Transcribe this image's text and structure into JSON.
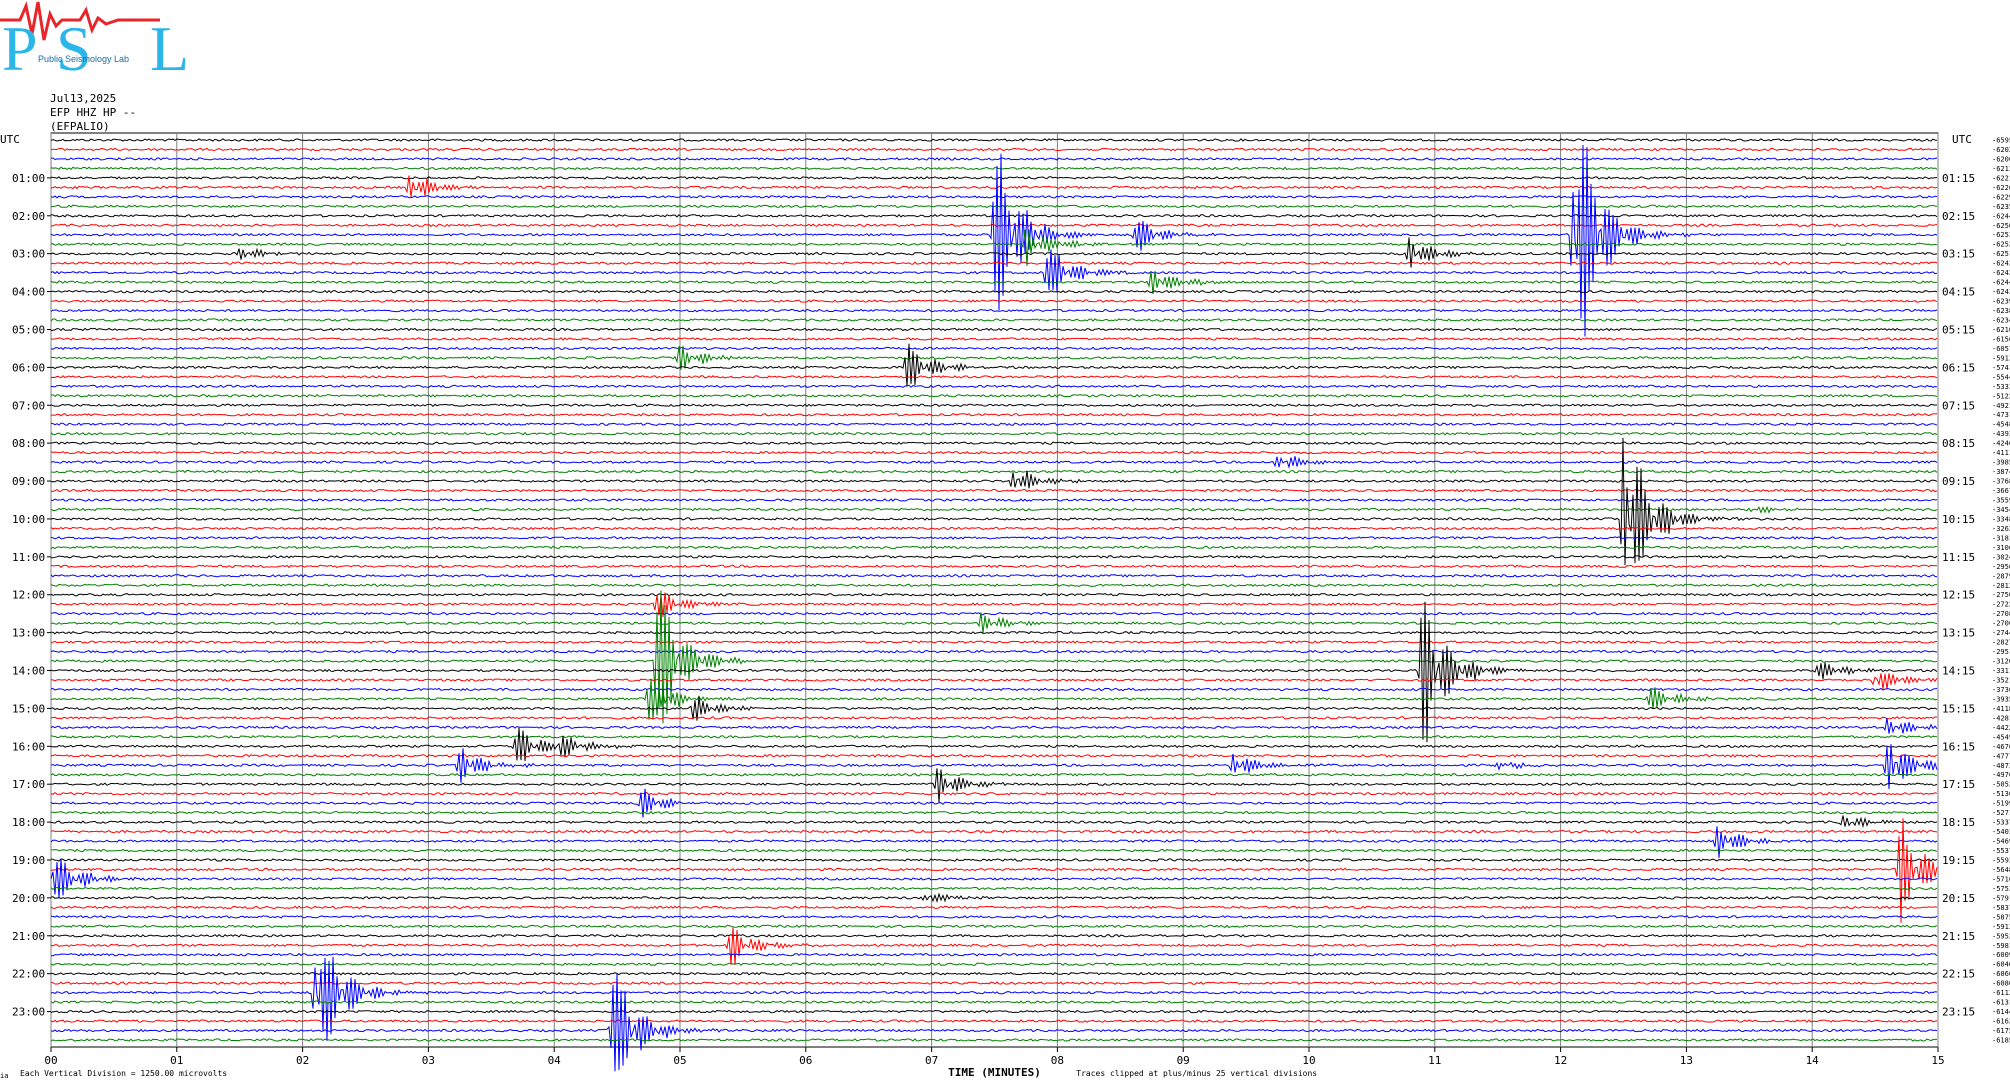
{
  "logo": {
    "letters": [
      "P",
      "S",
      "L"
    ],
    "text": "Public Seismology Lab"
  },
  "header": {
    "date": "Jul13,2025",
    "channel": "EFP HHZ HP --",
    "station": "(EFPALIO)"
  },
  "axis": {
    "left_title": "UTC",
    "right_title": "UTC",
    "x_title": "TIME (MINUTES)",
    "x_ticks": [
      "00",
      "01",
      "02",
      "03",
      "04",
      "05",
      "06",
      "07",
      "08",
      "09",
      "10",
      "11",
      "12",
      "13",
      "14",
      "15"
    ],
    "left_hours": [
      "01:00",
      "02:00",
      "03:00",
      "04:00",
      "05:00",
      "06:00",
      "07:00",
      "08:00",
      "09:00",
      "10:00",
      "11:00",
      "12:00",
      "13:00",
      "14:00",
      "15:00",
      "16:00",
      "17:00",
      "18:00",
      "19:00",
      "20:00",
      "21:00",
      "22:00",
      "23:00"
    ],
    "right_hours": [
      "01:15",
      "02:15",
      "03:15",
      "04:15",
      "05:15",
      "06:15",
      "07:15",
      "08:15",
      "09:15",
      "10:15",
      "11:15",
      "12:15",
      "13:15",
      "14:15",
      "15:15",
      "16:15",
      "17:15",
      "18:15",
      "19:15",
      "20:15",
      "21:15",
      "22:15",
      "23:15"
    ]
  },
  "footer": {
    "scale": "Each Vertical Division = 1250.00 microvolts",
    "clip": "Traces clipped at plus/minus 25 vertical divisions",
    "corner": "ia"
  },
  "colors": {
    "trace_cycle": [
      "#000000",
      "#ff0000",
      "#0000ff",
      "#008000"
    ],
    "grid": "#808080"
  },
  "chart_data": {
    "type": "line",
    "title": "",
    "xlabel": "TIME (MINUTES)",
    "ylabel": "UTC",
    "xlim": [
      0,
      15
    ],
    "rows_per_hour": 4,
    "row_minutes": 15,
    "rows": 96,
    "dc_offsets": [
      -6595,
      -6202,
      -6206,
      -6213,
      -6221,
      -6226,
      -6229,
      -6235,
      -6244,
      -6250,
      -6253,
      -6252,
      -6251,
      -6242,
      -6242,
      -6244,
      -6243,
      -6239,
      -6238,
      -6234,
      -6210,
      -6156,
      -6057,
      -5913,
      -5741,
      -5544,
      -5333,
      -5122,
      -4921,
      -4731,
      -4548,
      -4393,
      -4246,
      -4111,
      -3985,
      -3874,
      -3768,
      -3667,
      -3559,
      -3454,
      -3348,
      -3262,
      -3181,
      -3106,
      -3024,
      -2956,
      -2879,
      -2812,
      -2750,
      -2722,
      -2708,
      -2706,
      -2744,
      -2827,
      -2951,
      -3120,
      -3311,
      -3521,
      -3736,
      -3935,
      -4118,
      -4281,
      -4422,
      -4549,
      -4676,
      -4777,
      -4873,
      -4976,
      -5052,
      -5136,
      -5199,
      -5271,
      -5337,
      -5403,
      -5469,
      -5537,
      -5593,
      -5648,
      -5710,
      -5753,
      -5791,
      -5837,
      -5875,
      -5913,
      -5952,
      -5981,
      -6009,
      -6040,
      -6066,
      -6086,
      -6112,
      -6131,
      -6144,
      -6162,
      -6175,
      -6185
    ],
    "events": [
      {
        "row": 5,
        "minute": 2.85,
        "amplitude": 1.0
      },
      {
        "row": 10,
        "minute": 7.5,
        "amplitude": 6.0
      },
      {
        "row": 10,
        "minute": 12.1,
        "amplitude": 9.0
      },
      {
        "row": 10,
        "minute": 8.6,
        "amplitude": 1.2
      },
      {
        "row": 11,
        "minute": 7.75,
        "amplitude": 1.1
      },
      {
        "row": 12,
        "minute": 1.5,
        "amplitude": 0.4
      },
      {
        "row": 12,
        "minute": 10.8,
        "amplitude": 1.0
      },
      {
        "row": 14,
        "minute": 7.9,
        "amplitude": 2.0
      },
      {
        "row": 15,
        "minute": 8.75,
        "amplitude": 1.0
      },
      {
        "row": 23,
        "minute": 5.0,
        "amplitude": 0.8
      },
      {
        "row": 24,
        "minute": 6.8,
        "amplitude": 1.5
      },
      {
        "row": 34,
        "minute": 9.75,
        "amplitude": 0.6
      },
      {
        "row": 36,
        "minute": 7.65,
        "amplitude": 1.0
      },
      {
        "row": 39,
        "minute": 13.5,
        "amplitude": 0.3
      },
      {
        "row": 40,
        "minute": 12.5,
        "amplitude": 6.0
      },
      {
        "row": 49,
        "minute": 4.8,
        "amplitude": 1.0
      },
      {
        "row": 51,
        "minute": 7.4,
        "amplitude": 0.6
      },
      {
        "row": 55,
        "minute": 4.8,
        "amplitude": 5.5
      },
      {
        "row": 56,
        "minute": 10.9,
        "amplitude": 5.0
      },
      {
        "row": 56,
        "minute": 14.05,
        "amplitude": 0.6
      },
      {
        "row": 57,
        "minute": 14.5,
        "amplitude": 0.9
      },
      {
        "row": 59,
        "minute": 4.75,
        "amplitude": 1.5
      },
      {
        "row": 59,
        "minute": 12.7,
        "amplitude": 0.8
      },
      {
        "row": 60,
        "minute": 5.1,
        "amplitude": 0.8
      },
      {
        "row": 62,
        "minute": 14.6,
        "amplitude": 0.7
      },
      {
        "row": 64,
        "minute": 3.7,
        "amplitude": 1.2
      },
      {
        "row": 64,
        "minute": 4.05,
        "amplitude": 0.6
      },
      {
        "row": 66,
        "minute": 3.25,
        "amplitude": 1.2
      },
      {
        "row": 66,
        "minute": 9.4,
        "amplitude": 0.8
      },
      {
        "row": 66,
        "minute": 11.5,
        "amplitude": 0.3
      },
      {
        "row": 66,
        "minute": 14.6,
        "amplitude": 2.0
      },
      {
        "row": 68,
        "minute": 7.05,
        "amplitude": 1.0
      },
      {
        "row": 70,
        "minute": 4.7,
        "amplitude": 0.8
      },
      {
        "row": 72,
        "minute": 14.25,
        "amplitude": 0.5
      },
      {
        "row": 74,
        "minute": 13.25,
        "amplitude": 1.0
      },
      {
        "row": 77,
        "minute": 14.7,
        "amplitude": 3.0
      },
      {
        "row": 78,
        "minute": 0.0,
        "amplitude": 1.8
      },
      {
        "row": 80,
        "minute": 6.95,
        "amplitude": 0.4
      },
      {
        "row": 85,
        "minute": 5.4,
        "amplitude": 1.2
      },
      {
        "row": 90,
        "minute": 2.1,
        "amplitude": 4.5
      },
      {
        "row": 94,
        "minute": 4.45,
        "amplitude": 4.5
      }
    ]
  }
}
